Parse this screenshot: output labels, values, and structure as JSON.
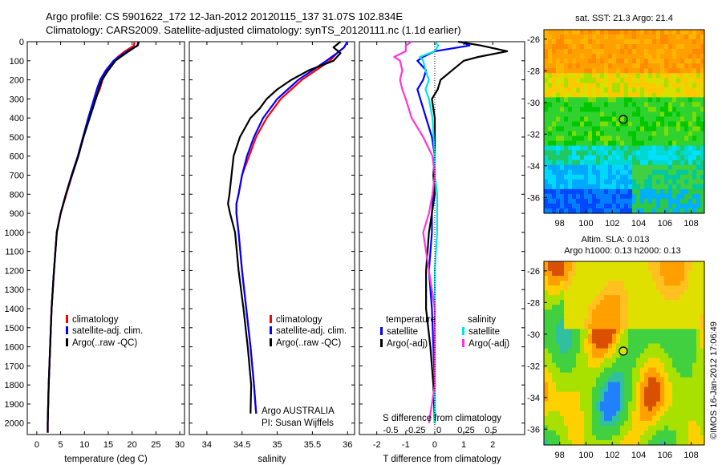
{
  "header": {
    "line1": "Argo profile: CS 5901622_172 12-Jan-2012 20120115_137 31.07S 102.834E",
    "line2": "Climatology: CARS2009. Satellite-adjusted climatology: synTS_20120111.nc (1.1d earlier)"
  },
  "colors": {
    "climatology": "#ff0000",
    "satellite": "#0000ff",
    "argo": "#000000",
    "sal_satellite": "#00e5e5",
    "sal_argo": "#ff33dd"
  },
  "chart_data": [
    {
      "type": "line",
      "id": "temperature",
      "xlabel": "temperature (deg C)",
      "ylabel": "",
      "xlim": [
        -2,
        31
      ],
      "ylim": [
        2060,
        0
      ],
      "xticks": [
        0,
        5,
        10,
        15,
        20,
        25,
        30
      ],
      "yticks": [
        0,
        100,
        200,
        300,
        400,
        500,
        600,
        700,
        800,
        900,
        1000,
        1100,
        1200,
        1300,
        1400,
        1500,
        1600,
        1700,
        1800,
        1900,
        2000
      ],
      "depth": [
        0,
        20,
        50,
        80,
        100,
        150,
        200,
        250,
        300,
        400,
        500,
        600,
        700,
        800,
        900,
        1000,
        1200,
        1400,
        1600,
        1800,
        2000,
        2050
      ],
      "series": [
        {
          "name": "climatology",
          "color": "#ff0000",
          "values": [
            20.5,
            20.4,
            18.5,
            17.0,
            16.2,
            14.8,
            13.8,
            13.2,
            12.3,
            11.0,
            9.8,
            8.7,
            7.4,
            6.2,
            5.0,
            4.2,
            3.6,
            3.1,
            2.8,
            2.5,
            2.3,
            2.3
          ]
        },
        {
          "name": "satellite-adj. clim.",
          "color": "#0000ff",
          "values": [
            21.4,
            21.2,
            19.0,
            17.2,
            16.1,
            14.5,
            13.3,
            12.6,
            12.0,
            10.8,
            9.7,
            8.6,
            7.3,
            6.1,
            5.0,
            4.2,
            3.6,
            3.1,
            2.8,
            2.5,
            2.3,
            2.3
          ]
        },
        {
          "name": "Argo(..raw -QC)",
          "color": "#000000",
          "values": [
            21.3,
            21.1,
            19.3,
            17.6,
            16.5,
            15.0,
            13.7,
            13.0,
            12.4,
            11.1,
            9.8,
            8.7,
            7.4,
            6.1,
            5.0,
            4.2,
            3.6,
            3.1,
            2.8,
            2.5,
            2.3,
            2.3
          ]
        }
      ],
      "legend": [
        "climatology",
        "satellite-adj. clim.",
        "Argo(..raw -QC)"
      ]
    },
    {
      "type": "line",
      "id": "salinity",
      "xlabel": "salinity",
      "ylabel": "",
      "xlim": [
        33.75,
        36.1
      ],
      "ylim": [
        2060,
        0
      ],
      "xticks": [
        34,
        34.5,
        35,
        35.5,
        36
      ],
      "xticklabels": [
        "34",
        "34.5",
        "35",
        "35.5",
        "36"
      ],
      "depth": [
        0,
        30,
        60,
        100,
        150,
        200,
        250,
        300,
        350,
        400,
        500,
        600,
        700,
        800,
        850,
        900,
        1000,
        1200,
        1400,
        1600,
        1800,
        1950
      ],
      "series": [
        {
          "name": "climatology",
          "color": "#ff0000",
          "values": [
            36.0,
            35.95,
            35.85,
            35.75,
            35.55,
            35.35,
            35.2,
            35.05,
            34.95,
            34.85,
            34.7,
            34.6,
            34.5,
            34.45,
            34.42,
            34.42,
            34.45,
            34.5,
            34.56,
            34.62,
            34.67,
            34.7
          ]
        },
        {
          "name": "satellite-adj. clim.",
          "color": "#0000ff",
          "values": [
            36.0,
            35.95,
            35.85,
            35.7,
            35.5,
            35.3,
            35.15,
            35.0,
            34.9,
            34.8,
            34.67,
            34.57,
            34.5,
            34.45,
            34.42,
            34.42,
            34.45,
            34.5,
            34.56,
            34.62,
            34.67,
            34.7
          ]
        },
        {
          "name": "Argo(..raw -QC)",
          "color": "#000000",
          "values": [
            35.9,
            35.8,
            35.9,
            35.8,
            35.45,
            35.2,
            35.0,
            34.85,
            34.75,
            34.62,
            34.47,
            34.38,
            34.35,
            34.32,
            34.3,
            34.33,
            34.4,
            34.45,
            34.52,
            34.58,
            34.63,
            34.62
          ]
        }
      ],
      "legend": [
        "climatology",
        "satellite-adj. clim.",
        "Argo(..raw -QC)"
      ],
      "annotations": [
        "Argo AUSTRALIA",
        "PI: Susan Wijffels"
      ]
    },
    {
      "type": "line",
      "id": "difference",
      "xlabel": "T difference from climatology",
      "secondary_xlabel": "S difference from climatology",
      "xlim": [
        -2.6,
        3.1
      ],
      "ylim": [
        2060,
        0
      ],
      "xticks": [
        -2,
        -1,
        0,
        1,
        2
      ],
      "sticks": [
        -0.5,
        -0.25,
        0,
        0.25,
        0.5
      ],
      "sticklabels": [
        "-0.5",
        "-0.25",
        "0",
        "0.25",
        "0.5"
      ],
      "depth": [
        0,
        20,
        50,
        80,
        100,
        150,
        200,
        250,
        300,
        400,
        500,
        600,
        700,
        800,
        900,
        1000,
        1200,
        1400,
        1600,
        1800,
        2000
      ],
      "series": [
        {
          "name": "temperature satellite",
          "color": "#0000ff",
          "values": [
            0.9,
            1.2,
            0.0,
            -0.4,
            -0.6,
            -0.3,
            -0.4,
            -0.6,
            -0.5,
            -0.3,
            -0.1,
            0.0,
            0.0,
            -0.05,
            -0.1,
            -0.1,
            -0.2,
            -0.1,
            -0.05,
            0.0,
            0.0
          ]
        },
        {
          "name": "temperature Argo(-adj)",
          "color": "#000000",
          "values": [
            0.8,
            1.6,
            2.5,
            1.5,
            1.0,
            0.6,
            0.2,
            0.1,
            -0.1,
            0.0,
            0.0,
            0.0,
            -0.05,
            0.0,
            -0.1,
            -0.2,
            -0.3,
            -0.3,
            -0.15,
            -0.05,
            0.0
          ]
        },
        {
          "name": "salinity satellite",
          "color": "#00e5e5",
          "values": [
            0.0,
            0.03,
            0.0,
            -0.13,
            -0.1,
            -0.08,
            -0.05,
            -0.08,
            -0.05,
            -0.02,
            -0.01,
            0.0,
            0.0,
            0.02,
            0.02,
            0.02,
            0.0,
            0.0,
            0.0,
            0.0,
            0.0
          ]
        },
        {
          "name": "salinity Argo(-adj)",
          "color": "#ff33dd",
          "values": [
            -0.2,
            -0.25,
            -0.25,
            -0.35,
            -0.3,
            -0.28,
            -0.3,
            -0.28,
            -0.25,
            -0.2,
            -0.1,
            -0.02,
            0.0,
            -0.02,
            -0.05,
            -0.1,
            -0.05,
            0.0,
            0.0,
            0.0,
            -0.05
          ]
        }
      ],
      "legend_headers": [
        "temperature",
        "salinity"
      ],
      "legend": [
        "satellite",
        "Argo(-adj)",
        "satellite",
        "Argo(-adj)"
      ]
    },
    {
      "type": "heatmap",
      "id": "sst_map",
      "title": "sat. SST: 21.3 Argo: 21.4",
      "xticks": [
        98,
        100,
        102,
        104,
        106,
        108
      ],
      "yticks": [
        -26,
        -28,
        -30,
        -32,
        -34,
        -36
      ],
      "xlim": [
        96.8,
        109.0
      ],
      "ylim": [
        -37.0,
        -25.4
      ],
      "marker": {
        "lon": 102.834,
        "lat": -31.07
      }
    },
    {
      "type": "heatmap",
      "id": "sla_map",
      "title_line1": "Altim. SLA: 0.013",
      "title_line2": "Argo h1000: 0.13 h2000: 0.13",
      "xticks": [
        98,
        100,
        102,
        104,
        106,
        108
      ],
      "yticks": [
        -26,
        -28,
        -30,
        -32,
        -34,
        -36
      ],
      "xlim": [
        96.8,
        109.0
      ],
      "ylim": [
        -37.0,
        -25.4
      ],
      "marker": {
        "lon": 102.834,
        "lat": -31.07
      }
    }
  ],
  "credit": "©IMOS 16-Jan-2012 17:06:49"
}
